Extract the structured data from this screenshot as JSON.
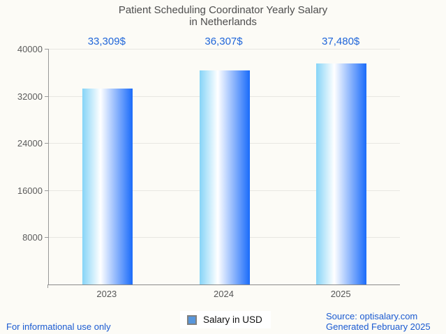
{
  "title": {
    "line1": "Patient Scheduling Coordinator Yearly Salary",
    "line2": "in Netherlands"
  },
  "chart_data": {
    "type": "bar",
    "title": "Patient Scheduling Coordinator Yearly Salary in Netherlands",
    "categories": [
      "2023",
      "2024",
      "2025"
    ],
    "values": [
      33309,
      36307,
      37480
    ],
    "value_labels": [
      "33,309$",
      "36,307$",
      "37,480$"
    ],
    "xlabel": "",
    "ylabel": "",
    "ylim": [
      0,
      40000
    ],
    "yticks": [
      8000,
      16000,
      24000,
      32000,
      40000
    ],
    "grid": true,
    "legend": {
      "label": "Salary in USD",
      "position": "bottom-center"
    },
    "bar_gradient": [
      "#86d4f7",
      "#ffffff",
      "#1a6bfa"
    ]
  },
  "footer": {
    "left": "For informational use only",
    "source": "Source: optisalary.com",
    "generated": "Generated February 2025"
  },
  "colors": {
    "background": "#fcfbf6",
    "title_text": "#4d4d4d",
    "axis_text": "#5c5c5c",
    "value_label_blue": "#2066d9",
    "footer_blue": "#1a5ad1",
    "gridline": "#e8e7e2",
    "axis_line": "#999999",
    "legend_swatch_fill": "#5796dc",
    "legend_swatch_border": "#808080"
  }
}
